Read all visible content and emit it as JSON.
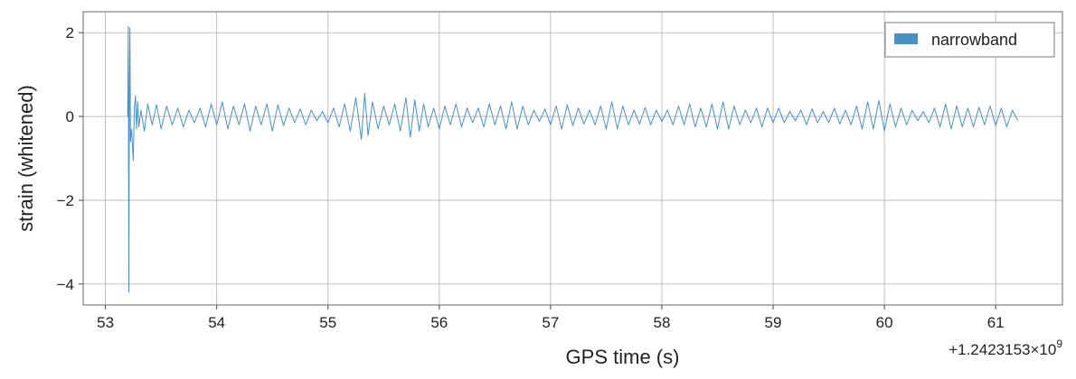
{
  "chart_data": {
    "type": "line",
    "xlabel": "GPS time (s)",
    "ylabel": "strain (whitened)",
    "offset_text": "+1.2423153×10",
    "offset_exponent": "9",
    "xlim": [
      52.8,
      61.6
    ],
    "ylim": [
      -4.5,
      2.5
    ],
    "xticks": [
      53,
      54,
      55,
      56,
      57,
      58,
      59,
      60,
      61
    ],
    "xtick_labels": [
      "53",
      "54",
      "55",
      "56",
      "57",
      "58",
      "59",
      "60",
      "61"
    ],
    "yticks": [
      -4,
      -2,
      0,
      2
    ],
    "ytick_labels": [
      "−4",
      "−2",
      "0",
      "2"
    ],
    "grid": true,
    "legend_position": "top-right",
    "series": [
      {
        "name": "narrowband",
        "color": "#4a90c4",
        "x_start": 53.2,
        "x_end": 61.2,
        "points": [
          [
            53.2,
            0.0
          ],
          [
            53.205,
            2.15
          ],
          [
            53.21,
            -4.2
          ],
          [
            53.215,
            0.5
          ],
          [
            53.22,
            2.12
          ],
          [
            53.225,
            -0.6
          ],
          [
            53.235,
            -0.3
          ],
          [
            53.25,
            -1.05
          ],
          [
            53.26,
            0.2
          ],
          [
            53.27,
            0.5
          ],
          [
            53.28,
            -0.3
          ],
          [
            53.29,
            0.35
          ],
          [
            53.3,
            -0.25
          ],
          [
            53.32,
            0.15
          ],
          [
            53.35,
            -0.35
          ],
          [
            53.38,
            0.3
          ],
          [
            53.42,
            -0.2
          ],
          [
            53.46,
            0.28
          ],
          [
            53.5,
            -0.3
          ],
          [
            53.55,
            0.25
          ],
          [
            53.6,
            -0.2
          ],
          [
            53.65,
            0.2
          ],
          [
            53.7,
            -0.25
          ],
          [
            53.75,
            0.15
          ],
          [
            53.8,
            -0.15
          ],
          [
            53.85,
            0.2
          ],
          [
            53.9,
            -0.25
          ],
          [
            53.95,
            0.3
          ],
          [
            54.0,
            -0.2
          ],
          [
            54.05,
            0.35
          ],
          [
            54.1,
            -0.3
          ],
          [
            54.15,
            0.25
          ],
          [
            54.2,
            -0.2
          ],
          [
            54.25,
            0.3
          ],
          [
            54.3,
            -0.35
          ],
          [
            54.35,
            0.25
          ],
          [
            54.4,
            -0.2
          ],
          [
            54.45,
            0.3
          ],
          [
            54.5,
            -0.35
          ],
          [
            54.55,
            0.28
          ],
          [
            54.6,
            -0.22
          ],
          [
            54.65,
            0.2
          ],
          [
            54.7,
            -0.15
          ],
          [
            54.75,
            0.18
          ],
          [
            54.8,
            -0.2
          ],
          [
            54.85,
            0.15
          ],
          [
            54.9,
            -0.1
          ],
          [
            54.95,
            0.12
          ],
          [
            55.0,
            -0.15
          ],
          [
            55.05,
            0.2
          ],
          [
            55.1,
            -0.25
          ],
          [
            55.15,
            0.3
          ],
          [
            55.2,
            -0.35
          ],
          [
            55.25,
            0.45
          ],
          [
            55.3,
            -0.55
          ],
          [
            55.33,
            0.55
          ],
          [
            55.36,
            -0.45
          ],
          [
            55.4,
            0.35
          ],
          [
            55.45,
            -0.3
          ],
          [
            55.5,
            0.25
          ],
          [
            55.55,
            -0.2
          ],
          [
            55.6,
            0.3
          ],
          [
            55.65,
            -0.35
          ],
          [
            55.7,
            0.45
          ],
          [
            55.74,
            -0.5
          ],
          [
            55.78,
            0.4
          ],
          [
            55.82,
            -0.35
          ],
          [
            55.86,
            0.3
          ],
          [
            55.9,
            -0.25
          ],
          [
            55.95,
            0.2
          ],
          [
            56.0,
            -0.3
          ],
          [
            56.05,
            0.25
          ],
          [
            56.1,
            -0.2
          ],
          [
            56.15,
            0.3
          ],
          [
            56.2,
            -0.25
          ],
          [
            56.25,
            0.2
          ],
          [
            56.3,
            -0.15
          ],
          [
            56.35,
            0.2
          ],
          [
            56.4,
            -0.25
          ],
          [
            56.45,
            0.3
          ],
          [
            56.5,
            -0.2
          ],
          [
            56.55,
            0.25
          ],
          [
            56.6,
            -0.3
          ],
          [
            56.65,
            0.35
          ],
          [
            56.7,
            -0.3
          ],
          [
            56.75,
            0.25
          ],
          [
            56.8,
            -0.2
          ],
          [
            56.85,
            0.15
          ],
          [
            56.9,
            -0.12
          ],
          [
            56.95,
            0.18
          ],
          [
            57.0,
            -0.2
          ],
          [
            57.05,
            0.25
          ],
          [
            57.1,
            -0.3
          ],
          [
            57.15,
            0.28
          ],
          [
            57.2,
            -0.22
          ],
          [
            57.25,
            0.2
          ],
          [
            57.3,
            -0.18
          ],
          [
            57.35,
            0.15
          ],
          [
            57.4,
            -0.2
          ],
          [
            57.45,
            0.25
          ],
          [
            57.5,
            -0.3
          ],
          [
            57.55,
            0.35
          ],
          [
            57.6,
            -0.3
          ],
          [
            57.65,
            0.25
          ],
          [
            57.7,
            -0.2
          ],
          [
            57.75,
            0.15
          ],
          [
            57.8,
            -0.18
          ],
          [
            57.85,
            0.22
          ],
          [
            57.9,
            -0.2
          ],
          [
            57.95,
            0.15
          ],
          [
            58.0,
            -0.12
          ],
          [
            58.05,
            0.15
          ],
          [
            58.1,
            -0.2
          ],
          [
            58.15,
            0.25
          ],
          [
            58.2,
            -0.2
          ],
          [
            58.25,
            0.3
          ],
          [
            58.3,
            -0.25
          ],
          [
            58.35,
            0.2
          ],
          [
            58.4,
            -0.25
          ],
          [
            58.45,
            0.3
          ],
          [
            58.5,
            -0.3
          ],
          [
            58.55,
            0.35
          ],
          [
            58.6,
            -0.3
          ],
          [
            58.65,
            0.25
          ],
          [
            58.7,
            -0.2
          ],
          [
            58.75,
            0.15
          ],
          [
            58.8,
            -0.15
          ],
          [
            58.85,
            0.2
          ],
          [
            58.9,
            -0.25
          ],
          [
            58.95,
            0.2
          ],
          [
            59.0,
            -0.15
          ],
          [
            59.05,
            0.2
          ],
          [
            59.1,
            -0.15
          ],
          [
            59.15,
            0.12
          ],
          [
            59.2,
            -0.1
          ],
          [
            59.25,
            0.15
          ],
          [
            59.3,
            -0.2
          ],
          [
            59.35,
            0.18
          ],
          [
            59.4,
            -0.15
          ],
          [
            59.45,
            0.12
          ],
          [
            59.5,
            -0.15
          ],
          [
            59.55,
            0.2
          ],
          [
            59.6,
            -0.18
          ],
          [
            59.65,
            0.15
          ],
          [
            59.7,
            -0.2
          ],
          [
            59.75,
            0.25
          ],
          [
            59.8,
            -0.3
          ],
          [
            59.85,
            0.35
          ],
          [
            59.9,
            -0.3
          ],
          [
            59.95,
            0.38
          ],
          [
            60.0,
            -0.35
          ],
          [
            60.05,
            0.3
          ],
          [
            60.1,
            -0.25
          ],
          [
            60.15,
            0.2
          ],
          [
            60.2,
            -0.2
          ],
          [
            60.25,
            0.15
          ],
          [
            60.3,
            -0.1
          ],
          [
            60.35,
            0.12
          ],
          [
            60.4,
            -0.15
          ],
          [
            60.45,
            0.2
          ],
          [
            60.5,
            -0.25
          ],
          [
            60.55,
            0.3
          ],
          [
            60.6,
            -0.3
          ],
          [
            60.65,
            0.25
          ],
          [
            60.7,
            -0.25
          ],
          [
            60.75,
            0.2
          ],
          [
            60.8,
            -0.25
          ],
          [
            60.85,
            0.22
          ],
          [
            60.9,
            -0.2
          ],
          [
            60.95,
            0.25
          ],
          [
            61.0,
            -0.22
          ],
          [
            61.05,
            0.2
          ],
          [
            61.1,
            -0.25
          ],
          [
            61.15,
            0.15
          ],
          [
            61.2,
            -0.1
          ]
        ]
      }
    ]
  },
  "colors": {
    "series": "#4a90c4",
    "grid": "#b0b0b0",
    "axes": "#808080",
    "text": "#222222"
  }
}
